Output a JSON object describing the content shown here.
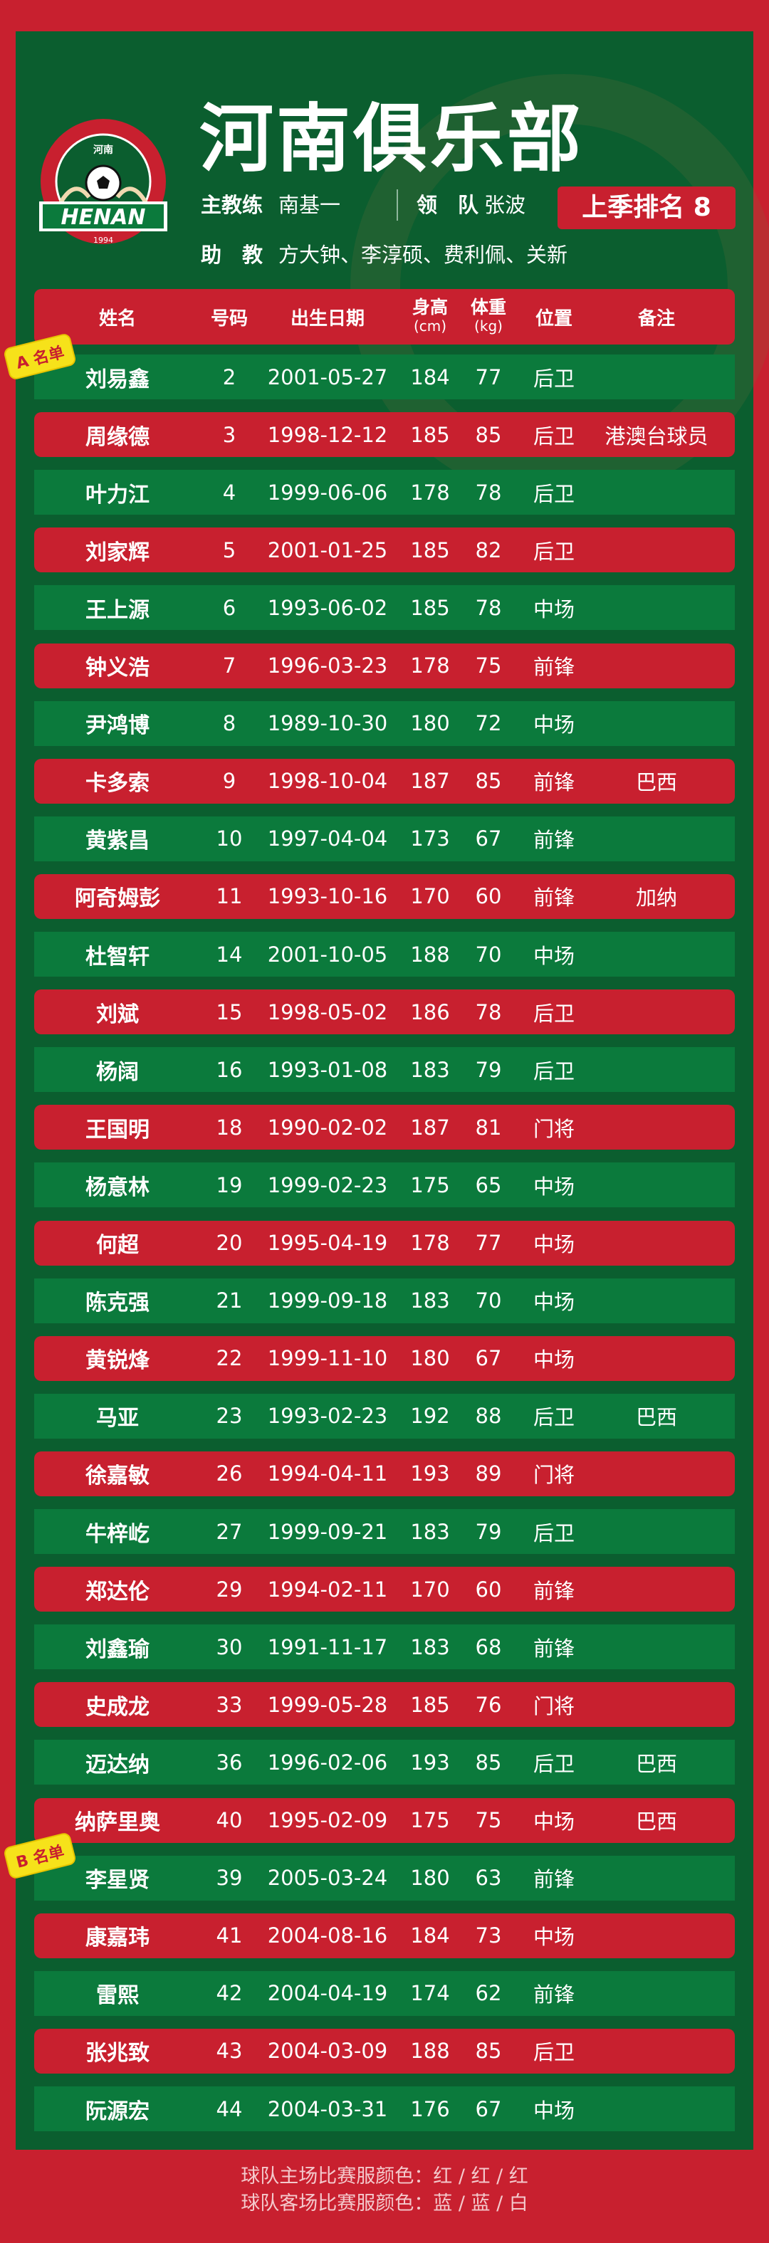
{
  "colors": {
    "red": "#c8202f",
    "green_panel": "#0b5e2f",
    "green_row": "#0b7a3c",
    "badge": "#f6e21a"
  },
  "logo": {
    "ring_text": "HENAN FOOTBALL CLUB",
    "cn": "河南",
    "name": "HENAN",
    "year": "1994"
  },
  "title": "河南俱乐部",
  "staff": {
    "head_coach_label": "主教练",
    "head_coach": "南基一",
    "leader_label": "领　队",
    "leader": "张波",
    "assistant_label": "助　教",
    "assistants": "方大钟、李淳硕、费利佩、关新"
  },
  "rank": "上季排名 8",
  "table": {
    "headers": {
      "name": "姓名",
      "number": "号码",
      "dob": "出生日期",
      "height": "身高",
      "height_unit": "(cm)",
      "weight": "体重",
      "weight_unit": "(kg)",
      "position": "位置",
      "notes": "备注"
    },
    "badges": {
      "a": "A 名单",
      "b": "B 名单"
    },
    "rows": [
      [
        "刘易鑫",
        "2",
        "2001-05-27",
        "184",
        "77",
        "后卫",
        ""
      ],
      [
        "周缘德",
        "3",
        "1998-12-12",
        "185",
        "85",
        "后卫",
        "港澳台球员"
      ],
      [
        "叶力江",
        "4",
        "1999-06-06",
        "178",
        "78",
        "后卫",
        ""
      ],
      [
        "刘家辉",
        "5",
        "2001-01-25",
        "185",
        "82",
        "后卫",
        ""
      ],
      [
        "王上源",
        "6",
        "1993-06-02",
        "185",
        "78",
        "中场",
        ""
      ],
      [
        "钟义浩",
        "7",
        "1996-03-23",
        "178",
        "75",
        "前锋",
        ""
      ],
      [
        "尹鸿博",
        "8",
        "1989-10-30",
        "180",
        "72",
        "中场",
        ""
      ],
      [
        "卡多索",
        "9",
        "1998-10-04",
        "187",
        "85",
        "前锋",
        "巴西"
      ],
      [
        "黄紫昌",
        "10",
        "1997-04-04",
        "173",
        "67",
        "前锋",
        ""
      ],
      [
        "阿奇姆彭",
        "11",
        "1993-10-16",
        "170",
        "60",
        "前锋",
        "加纳"
      ],
      [
        "杜智轩",
        "14",
        "2001-10-05",
        "188",
        "70",
        "中场",
        ""
      ],
      [
        "刘斌",
        "15",
        "1998-05-02",
        "186",
        "78",
        "后卫",
        ""
      ],
      [
        "杨阔",
        "16",
        "1993-01-08",
        "183",
        "79",
        "后卫",
        ""
      ],
      [
        "王国明",
        "18",
        "1990-02-02",
        "187",
        "81",
        "门将",
        ""
      ],
      [
        "杨意林",
        "19",
        "1999-02-23",
        "175",
        "65",
        "中场",
        ""
      ],
      [
        "何超",
        "20",
        "1995-04-19",
        "178",
        "77",
        "中场",
        ""
      ],
      [
        "陈克强",
        "21",
        "1999-09-18",
        "183",
        "70",
        "中场",
        ""
      ],
      [
        "黄锐烽",
        "22",
        "1999-11-10",
        "180",
        "67",
        "中场",
        ""
      ],
      [
        "马亚",
        "23",
        "1993-02-23",
        "192",
        "88",
        "后卫",
        "巴西"
      ],
      [
        "徐嘉敏",
        "26",
        "1994-04-11",
        "193",
        "89",
        "门将",
        ""
      ],
      [
        "牛梓屹",
        "27",
        "1999-09-21",
        "183",
        "79",
        "后卫",
        ""
      ],
      [
        "郑达伦",
        "29",
        "1994-02-11",
        "170",
        "60",
        "前锋",
        ""
      ],
      [
        "刘鑫瑜",
        "30",
        "1991-11-17",
        "183",
        "68",
        "前锋",
        ""
      ],
      [
        "史成龙",
        "33",
        "1999-05-28",
        "185",
        "76",
        "门将",
        ""
      ],
      [
        "迈达纳",
        "36",
        "1996-02-06",
        "193",
        "85",
        "后卫",
        "巴西"
      ],
      [
        "纳萨里奥",
        "40",
        "1995-02-09",
        "175",
        "75",
        "中场",
        "巴西"
      ],
      [
        "李星贤",
        "39",
        "2005-03-24",
        "180",
        "63",
        "前锋",
        ""
      ],
      [
        "康嘉玮",
        "41",
        "2004-08-16",
        "184",
        "73",
        "中场",
        ""
      ],
      [
        "雷熙",
        "42",
        "2004-04-19",
        "174",
        "62",
        "前锋",
        ""
      ],
      [
        "张兆致",
        "43",
        "2004-03-09",
        "188",
        "85",
        "后卫",
        ""
      ],
      [
        "阮源宏",
        "44",
        "2004-03-31",
        "176",
        "67",
        "中场",
        ""
      ]
    ]
  },
  "footer": {
    "home": "球队主场比赛服颜色：红 / 红 / 红",
    "away": "球队客场比赛服颜色：蓝 / 蓝 / 白"
  }
}
